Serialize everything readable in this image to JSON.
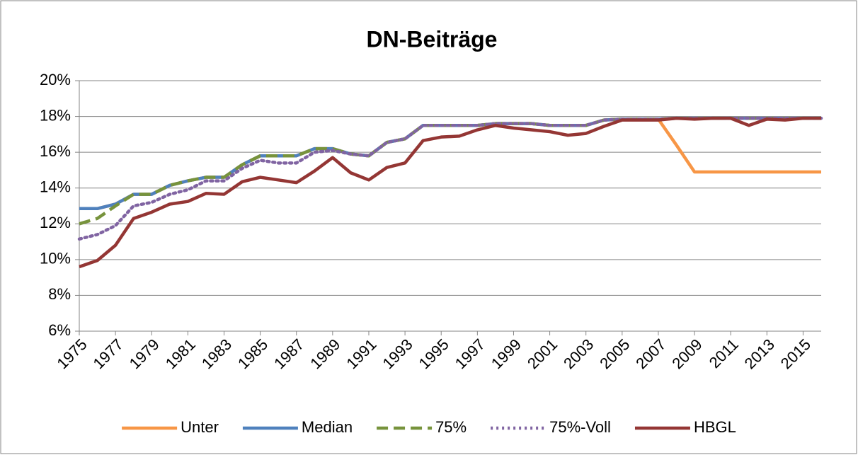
{
  "chart_data": {
    "type": "line",
    "title": "DN-Beiträge",
    "x": [
      1975,
      1976,
      1977,
      1978,
      1979,
      1980,
      1981,
      1982,
      1983,
      1984,
      1985,
      1986,
      1987,
      1988,
      1989,
      1990,
      1991,
      1992,
      1993,
      1994,
      1995,
      1996,
      1997,
      1998,
      1999,
      2000,
      2001,
      2002,
      2003,
      2004,
      2005,
      2006,
      2007,
      2008,
      2009,
      2010,
      2011,
      2012,
      2013,
      2014,
      2015,
      2016
    ],
    "xlim": [
      1975,
      2016
    ],
    "xticks": [
      1975,
      1977,
      1979,
      1981,
      1983,
      1985,
      1987,
      1989,
      1991,
      1993,
      1995,
      1997,
      1999,
      2001,
      2003,
      2005,
      2007,
      2009,
      2011,
      2013,
      2015
    ],
    "ylim": [
      6,
      20
    ],
    "yticks": [
      {
        "value": 6,
        "label": "6%"
      },
      {
        "value": 8,
        "label": "8%"
      },
      {
        "value": 10,
        "label": "10%"
      },
      {
        "value": 12,
        "label": "12%"
      },
      {
        "value": 14,
        "label": "14%"
      },
      {
        "value": 16,
        "label": "16%"
      },
      {
        "value": 18,
        "label": "18%"
      },
      {
        "value": 20,
        "label": "20%"
      }
    ],
    "grid": true,
    "legend": "bottom",
    "series": [
      {
        "name": "Unter",
        "color": "#f79646",
        "style": "solid",
        "values": [
          12.85,
          12.85,
          13.1,
          13.65,
          13.65,
          14.15,
          14.4,
          14.6,
          14.6,
          15.3,
          15.8,
          15.8,
          15.8,
          16.2,
          16.2,
          15.9,
          15.8,
          16.55,
          16.75,
          17.5,
          17.5,
          17.5,
          17.5,
          17.6,
          17.6,
          17.6,
          17.5,
          17.5,
          17.5,
          17.8,
          17.85,
          17.85,
          17.85,
          16.4,
          14.9,
          14.9,
          14.9,
          14.9,
          14.9,
          14.9,
          14.9,
          14.9
        ]
      },
      {
        "name": "Median",
        "color": "#4f81bd",
        "style": "solid",
        "values": [
          12.85,
          12.85,
          13.1,
          13.65,
          13.65,
          14.15,
          14.4,
          14.6,
          14.6,
          15.3,
          15.8,
          15.8,
          15.8,
          16.2,
          16.2,
          15.9,
          15.8,
          16.55,
          16.75,
          17.5,
          17.5,
          17.5,
          17.5,
          17.6,
          17.6,
          17.6,
          17.5,
          17.5,
          17.5,
          17.8,
          17.85,
          17.85,
          17.85,
          17.9,
          17.9,
          17.9,
          17.9,
          17.9,
          17.9,
          17.9,
          17.9,
          17.9
        ]
      },
      {
        "name": "75%",
        "color": "#77933c",
        "style": "dashed",
        "values": [
          12.0,
          12.3,
          13.0,
          13.65,
          13.65,
          14.15,
          14.4,
          14.6,
          14.6,
          15.3,
          15.8,
          15.8,
          15.8,
          16.2,
          16.2,
          15.9,
          15.8,
          16.55,
          16.75,
          17.5,
          17.5,
          17.5,
          17.5,
          17.6,
          17.6,
          17.6,
          17.5,
          17.5,
          17.5,
          17.8,
          17.85,
          17.85,
          17.85,
          17.9,
          17.9,
          17.9,
          17.9,
          17.9,
          17.9,
          17.9,
          17.9,
          17.9
        ]
      },
      {
        "name": "75%-Voll",
        "color": "#8064a2",
        "style": "dotted",
        "values": [
          11.15,
          11.4,
          11.9,
          13.0,
          13.2,
          13.65,
          13.9,
          14.4,
          14.4,
          15.1,
          15.55,
          15.4,
          15.4,
          16.0,
          16.1,
          15.9,
          15.8,
          16.55,
          16.75,
          17.5,
          17.5,
          17.5,
          17.5,
          17.6,
          17.6,
          17.6,
          17.5,
          17.5,
          17.5,
          17.8,
          17.85,
          17.85,
          17.85,
          17.9,
          17.9,
          17.9,
          17.9,
          17.9,
          17.9,
          17.9,
          17.9,
          17.9
        ]
      },
      {
        "name": "HBGL",
        "color": "#943634",
        "style": "solid",
        "values": [
          9.6,
          9.95,
          10.8,
          12.3,
          12.65,
          13.1,
          13.25,
          13.7,
          13.65,
          14.35,
          14.6,
          14.45,
          14.3,
          14.95,
          15.7,
          14.85,
          14.45,
          15.15,
          15.4,
          16.65,
          16.85,
          16.9,
          17.25,
          17.5,
          17.35,
          17.25,
          17.15,
          16.95,
          17.05,
          17.45,
          17.8,
          17.8,
          17.8,
          17.9,
          17.85,
          17.9,
          17.9,
          17.5,
          17.85,
          17.8,
          17.9,
          17.9
        ]
      }
    ]
  }
}
